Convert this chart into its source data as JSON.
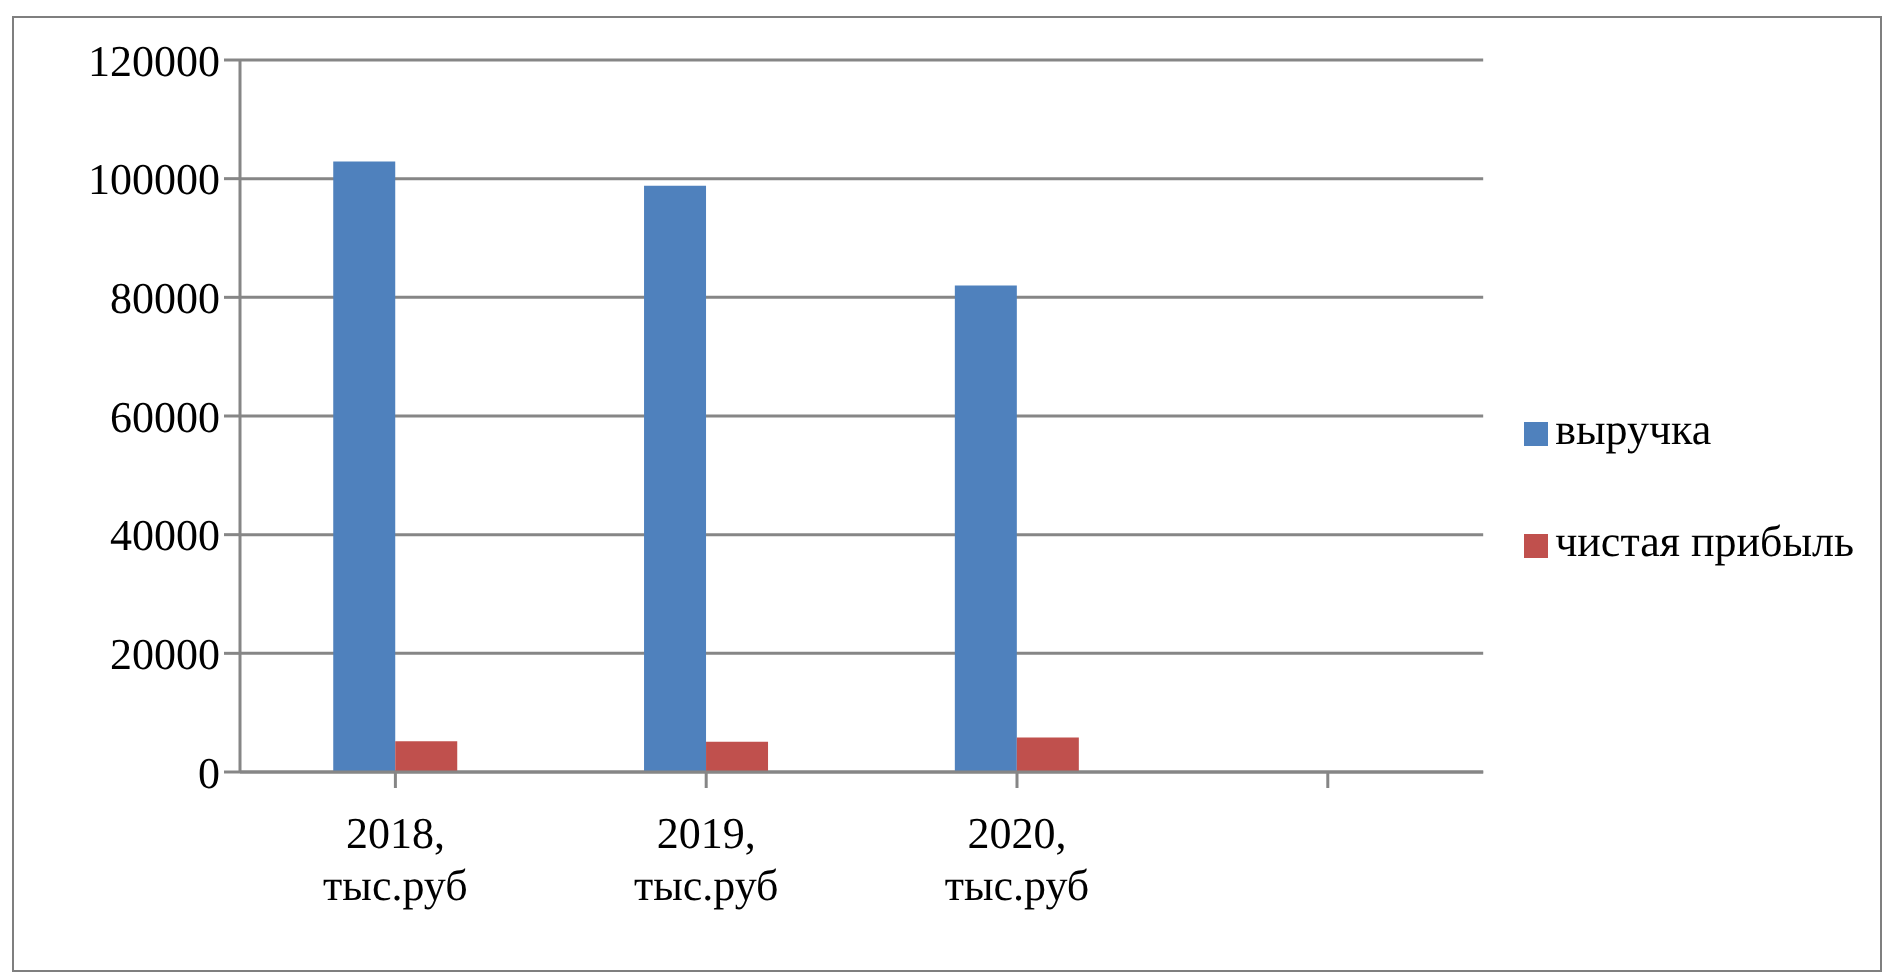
{
  "chart_data": {
    "type": "bar",
    "categories": [
      "2018, тыс.руб",
      "2019, тыс.руб",
      "2020, тыс.руб",
      null
    ],
    "series": [
      {
        "name": "выручка",
        "color": "#4f81bd",
        "values": [
          102900,
          98800,
          82000,
          null
        ]
      },
      {
        "name": "чистая прибыль",
        "color": "#c0504d",
        "values": [
          5200,
          5100,
          5800,
          null
        ]
      }
    ],
    "ylim": [
      0,
      120000
    ],
    "yticks": [
      0,
      20000,
      40000,
      60000,
      80000,
      100000,
      120000
    ],
    "grid": "y",
    "legend": "right"
  }
}
